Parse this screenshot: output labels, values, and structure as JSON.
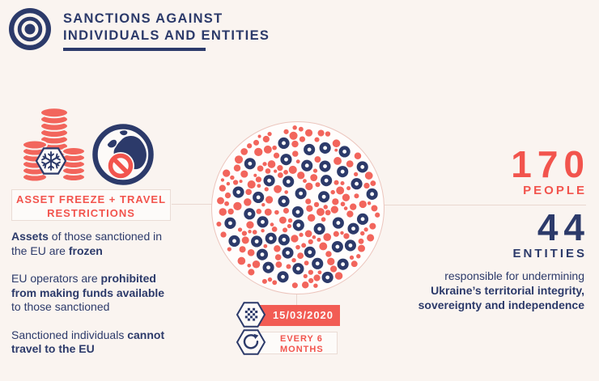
{
  "colors": {
    "navy": "#2c3a6a",
    "red": "#f2544d",
    "coral": "#f2655c",
    "background": "#faf4f0",
    "circle_border": "#ecc5bd",
    "connector_line": "#e9d7d0"
  },
  "header": {
    "icon": "target-icon",
    "title_line1": "SANCTIONS AGAINST",
    "title_line2": "INDIVIDUALS AND ENTITIES"
  },
  "left_panel": {
    "icons": [
      "frozen-assets-coins-icon",
      "travel-ban-globe-icon"
    ],
    "label_line1": "ASSET FREEZE + TRAVEL",
    "label_line2": "RESTRICTIONS",
    "measures": [
      {
        "lines": [
          [
            {
              "t": "Assets",
              "b": 1
            },
            {
              "t": " of those sanctioned in",
              "b": 0
            }
          ],
          [
            {
              "t": "the EU are ",
              "b": 0
            },
            {
              "t": "frozen",
              "b": 1
            }
          ]
        ]
      },
      {
        "lines": [
          [
            {
              "t": "EU operators are ",
              "b": 0
            },
            {
              "t": "prohibited",
              "b": 1
            }
          ],
          [
            {
              "t": "from making funds available",
              "b": 1
            }
          ],
          [
            {
              "t": "to those sanctioned",
              "b": 0
            }
          ]
        ]
      },
      {
        "lines": [
          [
            {
              "t": "Sanctioned individuals ",
              "b": 0
            },
            {
              "t": "cannot",
              "b": 1
            }
          ],
          [
            {
              "t": "travel to the EU",
              "b": 1
            }
          ]
        ]
      }
    ]
  },
  "dot_field": {
    "people_count": 170,
    "entities_count": 44,
    "people_color": "#f2655c",
    "entities_color": "#2c3a6a"
  },
  "review": {
    "listed_date": "15/03/2020",
    "frequency_line1": "EVERY 6",
    "frequency_line2": "MONTHS",
    "icons": [
      "calendar-icon",
      "renewal-cycle-icon"
    ]
  },
  "stats": {
    "people_value": "170",
    "people_label": "PEOPLE",
    "entities_value": "44",
    "entities_label": "ENTITIES",
    "description_lines": [
      [
        {
          "t": "responsible for undermining",
          "b": 0
        }
      ],
      [
        {
          "t": "Ukraine’s territorial integrity,",
          "b": 1
        }
      ],
      [
        {
          "t": "sovereignty and independence",
          "b": 1
        }
      ]
    ]
  }
}
